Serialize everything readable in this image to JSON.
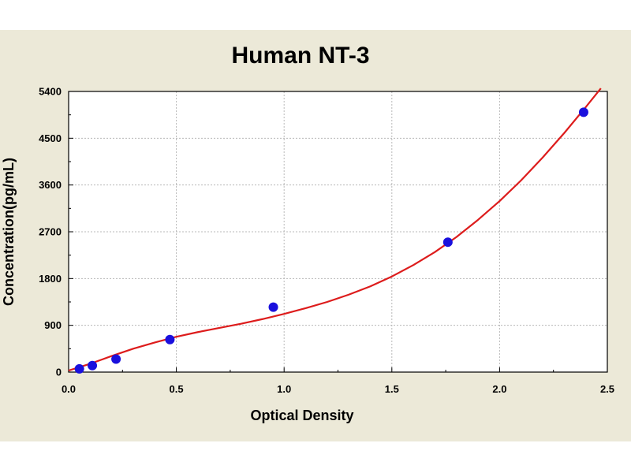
{
  "colors": {
    "frame_band": "#ece9d8",
    "plot_background": "#ffffff",
    "grid": "#b8b8b8",
    "curve": "#dd1c1c",
    "points": "#1a10dd"
  },
  "chart_data": {
    "type": "scatter",
    "title": "Human NT-3",
    "xlabel": "Optical Density",
    "ylabel": "Concentration(pg/mL)",
    "xlim": [
      0,
      2.5
    ],
    "ylim": [
      0,
      5400
    ],
    "xticks": [
      0.0,
      0.5,
      1.0,
      1.5,
      2.0,
      2.5
    ],
    "xtick_labels": [
      "0.0",
      "0.5",
      "1.0",
      "1.5",
      "2.0",
      "2.5"
    ],
    "yticks": [
      0,
      900,
      1800,
      2700,
      3600,
      4500,
      5400
    ],
    "ytick_labels": [
      "0",
      "900",
      "1800",
      "2700",
      "3600",
      "4500",
      "5400"
    ],
    "grid": true,
    "legend": "none",
    "series": [
      {
        "type": "scatter",
        "x": [
          0.05,
          0.11,
          0.22,
          0.47,
          0.95,
          1.76,
          2.39
        ],
        "y": [
          62.5,
          125,
          250,
          625,
          1250,
          2500,
          5000
        ]
      },
      {
        "type": "line",
        "x": [
          0.0,
          0.1,
          0.2,
          0.3,
          0.4,
          0.5,
          0.6,
          0.7,
          0.8,
          0.9,
          1.0,
          1.1,
          1.2,
          1.3,
          1.4,
          1.5,
          1.6,
          1.7,
          1.8,
          1.9,
          2.0,
          2.1,
          2.2,
          2.3,
          2.4,
          2.47
        ],
        "y": [
          30,
          160,
          310,
          450,
          570,
          680,
          770,
          850,
          930,
          1020,
          1120,
          1230,
          1350,
          1490,
          1650,
          1840,
          2060,
          2310,
          2600,
          2930,
          3290,
          3690,
          4130,
          4600,
          5100,
          5460
        ]
      }
    ]
  }
}
